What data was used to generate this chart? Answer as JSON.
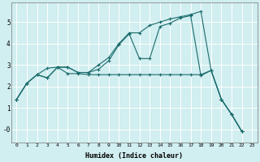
{
  "xlabel": "Humidex (Indice chaleur)",
  "bg_color": "#d1eef0",
  "grid_color": "#ffffff",
  "line_color": "#1a6b6b",
  "xlim": [
    -0.5,
    23.5
  ],
  "ylim": [
    -0.6,
    5.9
  ],
  "yticks": [
    0,
    1,
    2,
    3,
    4,
    5
  ],
  "ytick_labels": [
    "-0",
    "1",
    "2",
    "3",
    "4",
    "5"
  ],
  "xticks": [
    0,
    1,
    2,
    3,
    4,
    5,
    6,
    7,
    8,
    9,
    10,
    11,
    12,
    13,
    14,
    15,
    16,
    17,
    18,
    19,
    20,
    21,
    22,
    23
  ],
  "series1_x": [
    0,
    1,
    2,
    3,
    4,
    5,
    6,
    7,
    8,
    9,
    10,
    11,
    12,
    13,
    14,
    15,
    16,
    17,
    18,
    19,
    20,
    21,
    22
  ],
  "series1_y": [
    1.4,
    2.15,
    2.55,
    2.4,
    2.9,
    2.9,
    2.65,
    2.65,
    3.0,
    3.35,
    4.0,
    4.5,
    4.5,
    4.85,
    5.0,
    5.15,
    5.25,
    5.35,
    5.5,
    2.75,
    1.4,
    0.7,
    -0.1
  ],
  "series2_x": [
    0,
    1,
    2,
    3,
    4,
    5,
    6,
    7,
    8,
    9,
    10,
    11,
    12,
    13,
    14,
    15,
    16,
    17,
    18,
    19,
    20,
    21,
    22
  ],
  "series2_y": [
    1.4,
    2.15,
    2.55,
    2.4,
    2.9,
    2.6,
    2.6,
    2.55,
    2.55,
    2.55,
    2.55,
    2.55,
    2.55,
    2.55,
    2.55,
    2.55,
    2.55,
    2.55,
    2.55,
    2.75,
    1.4,
    0.7,
    -0.1
  ],
  "series3_x": [
    0,
    1,
    2,
    3,
    4,
    5,
    6,
    7,
    8,
    9,
    10,
    11,
    12,
    13,
    14,
    15,
    16,
    17,
    18,
    19,
    20,
    21,
    22
  ],
  "series3_y": [
    1.4,
    2.15,
    2.55,
    2.85,
    2.9,
    2.9,
    2.65,
    2.65,
    2.8,
    3.2,
    3.95,
    4.45,
    3.3,
    3.3,
    4.8,
    4.95,
    5.2,
    5.3,
    2.5,
    2.75,
    1.4,
    0.7,
    -0.1
  ]
}
